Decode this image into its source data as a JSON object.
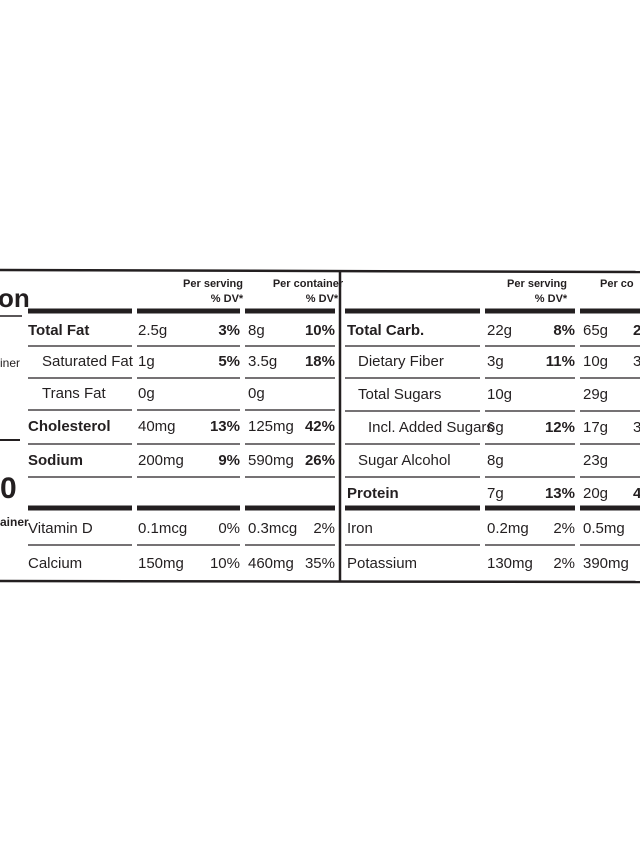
{
  "left": {
    "title_fragment": "on",
    "servings_fragment": "iner",
    "calories_fragment": "0",
    "container_fragment": "ainer",
    "headers": [
      {
        "line1": "Per serving",
        "line2": "% DV*"
      },
      {
        "line1": "Per container",
        "line2": "% DV*"
      }
    ],
    "rows": [
      {
        "name": "Total Fat",
        "bold": true,
        "cells": [
          "2.5g",
          "3%",
          "8g",
          "10%"
        ]
      },
      {
        "name": "Saturated Fat",
        "bold": false,
        "cells": [
          "1g",
          "5%",
          "3.5g",
          "18%"
        ]
      },
      {
        "name": "Trans Fat",
        "bold": false,
        "cells": [
          "0g",
          null,
          "0g",
          null
        ]
      },
      {
        "name": "Cholesterol",
        "bold": true,
        "cells": [
          "40mg",
          "13%",
          "125mg",
          "42%"
        ]
      },
      {
        "name": "Sodium",
        "bold": true,
        "cells": [
          "200mg",
          "9%",
          "590mg",
          "26%"
        ]
      },
      {
        "name": "Vitamin D",
        "bold": false,
        "cells": [
          "0.1mcg",
          "0%",
          "0.3mcg",
          "2%"
        ]
      },
      {
        "name": "Calcium",
        "bold": false,
        "cells": [
          "150mg",
          "10%",
          "460mg",
          "35%"
        ]
      }
    ]
  },
  "right": {
    "headers": [
      {
        "line1": "Per serving",
        "line2": "% DV*"
      },
      {
        "line1": "Per co"
      }
    ],
    "rows": [
      {
        "name": "Total Carb.",
        "bold": true,
        "cells": [
          "22g",
          "8%",
          "65g",
          "2"
        ]
      },
      {
        "name": "Dietary Fiber",
        "bold": false,
        "cells": [
          "3g",
          "11%",
          "10g",
          "3"
        ]
      },
      {
        "name": "Total Sugars",
        "bold": false,
        "cells": [
          "10g",
          null,
          "29g",
          null
        ]
      },
      {
        "name": "Incl. Added Sugars",
        "bold": false,
        "cells": [
          "6g",
          "12%",
          "17g",
          "3"
        ]
      },
      {
        "name": "Sugar Alcohol",
        "bold": false,
        "cells": [
          "8g",
          null,
          "23g",
          null
        ]
      },
      {
        "name": "Protein",
        "bold": true,
        "cells": [
          "7g",
          "13%",
          "20g",
          "4"
        ]
      },
      {
        "name": "Iron",
        "bold": false,
        "cells": [
          "0.2mg",
          "2%",
          "0.5mg",
          null
        ]
      },
      {
        "name": "Potassium",
        "bold": false,
        "cells": [
          "130mg",
          "2%",
          "390mg",
          null
        ]
      }
    ]
  }
}
